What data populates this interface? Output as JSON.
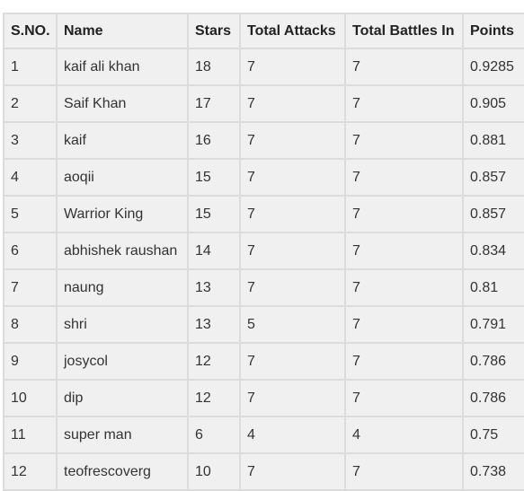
{
  "table": {
    "headers": [
      "S.NO.",
      "Name",
      "Stars",
      "Total Attacks",
      "Total Battles In",
      "Points"
    ],
    "rows": [
      [
        "1",
        "kaif ali khan",
        "18",
        "7",
        "7",
        "0.9285"
      ],
      [
        "2",
        "Saif Khan",
        "17",
        "7",
        "7",
        "0.905"
      ],
      [
        "3",
        "kaif",
        "16",
        "7",
        "7",
        "0.881"
      ],
      [
        "4",
        "aoqii",
        "15",
        "7",
        "7",
        "0.857"
      ],
      [
        "5",
        "Warrior King",
        "15",
        "7",
        "7",
        "0.857"
      ],
      [
        "6",
        "abhishek raushan",
        "14",
        "7",
        "7",
        "0.834"
      ],
      [
        "7",
        "naung",
        "13",
        "7",
        "7",
        "0.81"
      ],
      [
        "8",
        "shri",
        "13",
        "5",
        "7",
        "0.791"
      ],
      [
        "9",
        "josycol",
        "12",
        "7",
        "7",
        "0.786"
      ],
      [
        "10",
        "dip",
        "12",
        "7",
        "7",
        "0.786"
      ],
      [
        "11",
        "super man",
        "6",
        "4",
        "4",
        "0.75"
      ],
      [
        "12",
        "teofrescoverg",
        "10",
        "7",
        "7",
        "0.738"
      ]
    ]
  }
}
